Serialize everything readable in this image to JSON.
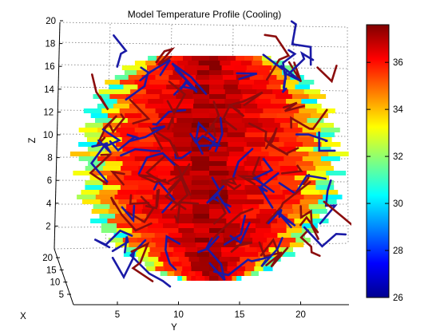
{
  "chart_data": {
    "type": "heatmap",
    "title": "Model Temperature Profile (Cooling)",
    "xlabel": "X",
    "ylabel": "Y",
    "zlabel": "Z",
    "ylim": [
      1,
      24
    ],
    "zlim": [
      0,
      20
    ],
    "y_ticks": [
      "5",
      "10",
      "15",
      "20"
    ],
    "z_ticks": [
      "2",
      "4",
      "6",
      "8",
      "10",
      "12",
      "14",
      "16",
      "18",
      "20"
    ],
    "x_ticks": [
      "5",
      "10",
      "15",
      "20"
    ],
    "colorbar": {
      "range": [
        26,
        37.6
      ],
      "ticks": [
        "26",
        "28",
        "30",
        "32",
        "34",
        "36"
      ],
      "colormap": "jet"
    },
    "grid": true,
    "series_colors": {
      "vessels_cool": "#1a1aa6",
      "vessels_warm": "#8b0d0d"
    }
  }
}
